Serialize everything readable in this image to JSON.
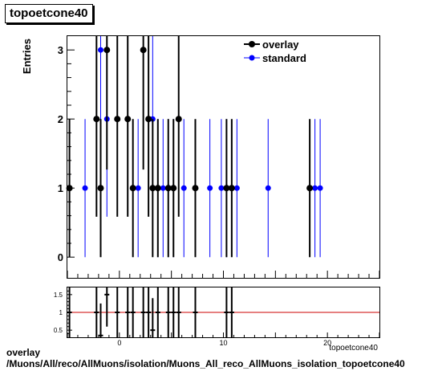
{
  "title": "topoetcone40",
  "footer": {
    "line1": "overlay",
    "line2": "/Muons/All/reco/AllMuons/isolation/Muons_All_reco_AllMuons_isolation_topoetcone40"
  },
  "colors": {
    "overlay": "#000000",
    "standard": "#0000ff",
    "ratio_line": "#cc0000"
  },
  "chart_data": [
    {
      "type": "scatter",
      "ylabel": "Entries",
      "xlim": [
        -5,
        25
      ],
      "ylim": [
        -0.3,
        3.2
      ],
      "yticks": [
        0,
        1,
        2,
        3
      ],
      "legend": {
        "placement": "top-right",
        "entries": [
          "overlay",
          "standard"
        ]
      },
      "series": [
        {
          "name": "overlay",
          "x": [
            -4.8,
            -2.2,
            -1.8,
            -1.2,
            -0.2,
            0.8,
            1.3,
            2.3,
            2.8,
            3.2,
            3.7,
            4.7,
            5.2,
            5.7,
            7.3,
            10.3,
            10.8,
            18.3
          ],
          "y": [
            1,
            2,
            1,
            3,
            2,
            2,
            1,
            3,
            2,
            1,
            1,
            1,
            1,
            2,
            1,
            1,
            1,
            1
          ]
        },
        {
          "name": "standard",
          "x": [
            -3.3,
            -1.8,
            -1.2,
            1.8,
            3.2,
            3.7,
            4.2,
            4.7,
            5.2,
            6.2,
            8.7,
            9.8,
            10.3,
            11.3,
            14.3,
            18.8,
            19.3
          ],
          "y": [
            1,
            3,
            2,
            1,
            2,
            1,
            1,
            1,
            1,
            1,
            1,
            1,
            1,
            1,
            1,
            1,
            1
          ]
        }
      ]
    },
    {
      "type": "scatter",
      "xlabel": "topoetcone40",
      "xlim": [
        -5,
        25
      ],
      "xticks": [
        0,
        10,
        20
      ],
      "ylim": [
        0.3,
        1.7
      ],
      "yticks": [
        0.5,
        1,
        1.5
      ],
      "reference_line": 1,
      "series": [
        {
          "name": "ratio",
          "x": [
            -4.8,
            -2.2,
            -1.8,
            -1.2,
            -0.2,
            0.8,
            1.3,
            2.3,
            2.8,
            3.2,
            3.7,
            4.7,
            5.2,
            5.7,
            7.3,
            10.3,
            10.8
          ],
          "y": [
            1,
            1,
            0.35,
            1.5,
            1,
            1,
            1,
            1,
            1,
            0.5,
            1,
            1,
            1,
            1,
            1,
            1,
            1
          ]
        }
      ]
    }
  ]
}
